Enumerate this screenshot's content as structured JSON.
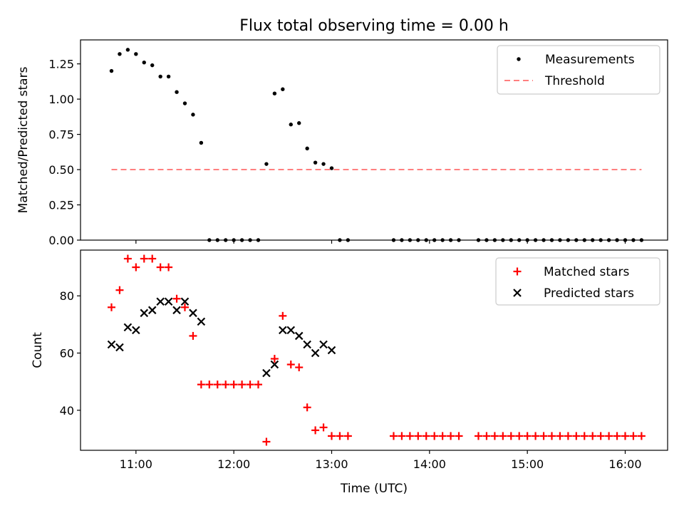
{
  "chart_data": {
    "title": "Flux total observing time = 0.00 h",
    "xlabel": "Time (UTC)",
    "x_ticks": [
      "11:00",
      "12:00",
      "13:00",
      "14:00",
      "15:00",
      "16:00"
    ],
    "panels": [
      {
        "type": "scatter",
        "ylabel": "Matched/Predicted stars",
        "ylim": [
          0,
          1.42
        ],
        "y_ticks": [
          "0.00",
          "0.25",
          "0.50",
          "0.75",
          "1.00",
          "1.25"
        ],
        "legend_position": "top-right",
        "series": [
          {
            "name": "Measurements",
            "marker": "dot",
            "color": "#000000",
            "points": [
              [
                "10:45",
                1.2
              ],
              [
                "10:50",
                1.32
              ],
              [
                "10:55",
                1.35
              ],
              [
                "11:00",
                1.32
              ],
              [
                "11:05",
                1.26
              ],
              [
                "11:10",
                1.24
              ],
              [
                "11:15",
                1.16
              ],
              [
                "11:20",
                1.16
              ],
              [
                "11:25",
                1.05
              ],
              [
                "11:30",
                0.97
              ],
              [
                "11:35",
                0.89
              ],
              [
                "11:40",
                0.69
              ],
              [
                "11:45",
                0
              ],
              [
                "11:50",
                0
              ],
              [
                "11:55",
                0
              ],
              [
                "12:00",
                0
              ],
              [
                "12:05",
                0
              ],
              [
                "12:10",
                0
              ],
              [
                "12:15",
                0
              ],
              [
                "12:20",
                0.54
              ],
              [
                "12:25",
                1.04
              ],
              [
                "12:30",
                1.07
              ],
              [
                "12:35",
                0.82
              ],
              [
                "12:40",
                0.83
              ],
              [
                "12:45",
                0.65
              ],
              [
                "12:50",
                0.55
              ],
              [
                "12:55",
                0.54
              ],
              [
                "13:00",
                0.51
              ],
              [
                "13:05",
                0
              ],
              [
                "13:10",
                0
              ],
              [
                "13:38",
                0
              ],
              [
                "13:43",
                0
              ],
              [
                "13:48",
                0
              ],
              [
                "13:53",
                0
              ],
              [
                "13:58",
                0
              ],
              [
                "14:03",
                0
              ],
              [
                "14:08",
                0
              ],
              [
                "14:13",
                0
              ],
              [
                "14:18",
                0
              ],
              [
                "14:30",
                0
              ],
              [
                "14:35",
                0
              ],
              [
                "14:40",
                0
              ],
              [
                "14:45",
                0
              ],
              [
                "14:50",
                0
              ],
              [
                "14:55",
                0
              ],
              [
                "15:00",
                0
              ],
              [
                "15:05",
                0
              ],
              [
                "15:10",
                0
              ],
              [
                "15:15",
                0
              ],
              [
                "15:20",
                0
              ],
              [
                "15:25",
                0
              ],
              [
                "15:30",
                0
              ],
              [
                "15:35",
                0
              ],
              [
                "15:40",
                0
              ],
              [
                "15:45",
                0
              ],
              [
                "15:50",
                0
              ],
              [
                "15:55",
                0
              ],
              [
                "16:00",
                0
              ],
              [
                "16:05",
                0
              ],
              [
                "16:10",
                0
              ]
            ]
          },
          {
            "name": "Threshold",
            "marker": "dashed-line",
            "color": "#ff7f7f",
            "points": [
              [
                "10:45",
                0.5
              ],
              [
                "16:10",
                0.5
              ]
            ]
          }
        ]
      },
      {
        "type": "scatter",
        "ylabel": "Count",
        "ylim": [
          26,
          96
        ],
        "y_ticks": [
          "40",
          "60",
          "80"
        ],
        "legend_position": "top-right",
        "series": [
          {
            "name": "Matched stars",
            "marker": "plus",
            "color": "#ff0000",
            "points": [
              [
                "10:45",
                76
              ],
              [
                "10:50",
                82
              ],
              [
                "10:55",
                93
              ],
              [
                "11:00",
                90
              ],
              [
                "11:05",
                93
              ],
              [
                "11:10",
                93
              ],
              [
                "11:15",
                90
              ],
              [
                "11:20",
                90
              ],
              [
                "11:25",
                79
              ],
              [
                "11:30",
                76
              ],
              [
                "11:35",
                66
              ],
              [
                "11:40",
                49
              ],
              [
                "11:45",
                49
              ],
              [
                "11:50",
                49
              ],
              [
                "11:55",
                49
              ],
              [
                "12:00",
                49
              ],
              [
                "12:05",
                49
              ],
              [
                "12:10",
                49
              ],
              [
                "12:15",
                49
              ],
              [
                "12:20",
                29
              ],
              [
                "12:25",
                58
              ],
              [
                "12:30",
                73
              ],
              [
                "12:35",
                56
              ],
              [
                "12:40",
                55
              ],
              [
                "12:45",
                41
              ],
              [
                "12:50",
                33
              ],
              [
                "12:55",
                34
              ],
              [
                "13:00",
                31
              ],
              [
                "13:05",
                31
              ],
              [
                "13:10",
                31
              ],
              [
                "13:38",
                31
              ],
              [
                "13:43",
                31
              ],
              [
                "13:48",
                31
              ],
              [
                "13:53",
                31
              ],
              [
                "13:58",
                31
              ],
              [
                "14:03",
                31
              ],
              [
                "14:08",
                31
              ],
              [
                "14:13",
                31
              ],
              [
                "14:18",
                31
              ],
              [
                "14:30",
                31
              ],
              [
                "14:35",
                31
              ],
              [
                "14:40",
                31
              ],
              [
                "14:45",
                31
              ],
              [
                "14:50",
                31
              ],
              [
                "14:55",
                31
              ],
              [
                "15:00",
                31
              ],
              [
                "15:05",
                31
              ],
              [
                "15:10",
                31
              ],
              [
                "15:15",
                31
              ],
              [
                "15:20",
                31
              ],
              [
                "15:25",
                31
              ],
              [
                "15:30",
                31
              ],
              [
                "15:35",
                31
              ],
              [
                "15:40",
                31
              ],
              [
                "15:45",
                31
              ],
              [
                "15:50",
                31
              ],
              [
                "15:55",
                31
              ],
              [
                "16:00",
                31
              ],
              [
                "16:05",
                31
              ],
              [
                "16:10",
                31
              ]
            ]
          },
          {
            "name": "Predicted stars",
            "marker": "x",
            "color": "#000000",
            "points": [
              [
                "10:45",
                63
              ],
              [
                "10:50",
                62
              ],
              [
                "10:55",
                69
              ],
              [
                "11:00",
                68
              ],
              [
                "11:05",
                74
              ],
              [
                "11:10",
                75
              ],
              [
                "11:15",
                78
              ],
              [
                "11:20",
                78
              ],
              [
                "11:25",
                75
              ],
              [
                "11:30",
                78
              ],
              [
                "11:35",
                74
              ],
              [
                "11:40",
                71
              ],
              [
                "12:20",
                53
              ],
              [
                "12:25",
                56
              ],
              [
                "12:30",
                68
              ],
              [
                "12:35",
                68
              ],
              [
                "12:40",
                66
              ],
              [
                "12:45",
                63
              ],
              [
                "12:50",
                60
              ],
              [
                "12:55",
                63
              ],
              [
                "13:00",
                61
              ]
            ]
          }
        ]
      }
    ]
  }
}
